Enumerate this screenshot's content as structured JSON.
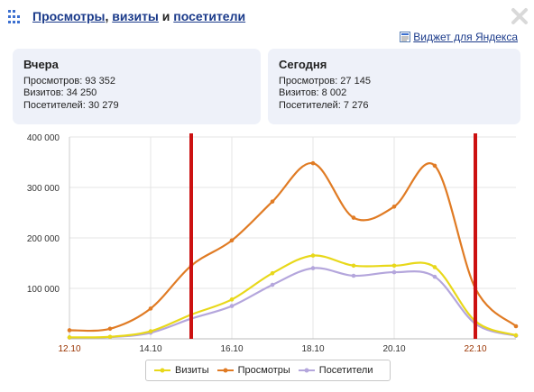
{
  "header": {
    "views_link": "Просмотры",
    "comma": ",",
    "visits_link": "визиты",
    "and_word": "и",
    "visitors_link": "посетители"
  },
  "yandex_widget_link": "Виджет для Яндекса",
  "yesterday": {
    "title": "Вчера",
    "views": "Просмотров: 93 352",
    "visits": "Визитов: 34 250",
    "visitors": "Посетителей: 30 279"
  },
  "today": {
    "title": "Сегодня",
    "views": "Просмотров: 27 145",
    "visits": "Визитов: 8 002",
    "visitors": "Посетителей: 7 276"
  },
  "colors": {
    "views": "#e07b24",
    "visits": "#e8d81a",
    "visitors": "#b4a6dc",
    "marker": "#cc1111",
    "weekend_label": "#993300"
  },
  "chart_data": {
    "type": "line",
    "x": [
      "12.10",
      "13.10",
      "14.10",
      "15.10",
      "16.10",
      "17.10",
      "18.10",
      "19.10",
      "20.10",
      "21.10",
      "22.10",
      "23.10"
    ],
    "x_tick_labels": [
      "12.10",
      "14.10",
      "16.10",
      "18.10",
      "20.10",
      "22.10"
    ],
    "y_tick_labels": [
      "400 000",
      "300 000",
      "200 000",
      "100 000"
    ],
    "ylim": [
      0,
      400000
    ],
    "grid": true,
    "legend_position": "bottom-center",
    "vertical_markers": [
      "15.10",
      "22.10"
    ],
    "series": [
      {
        "name": "Визиты",
        "values": [
          3000,
          4000,
          15000,
          48000,
          78000,
          130000,
          165000,
          145000,
          145000,
          142000,
          35000,
          7000
        ]
      },
      {
        "name": "Просмотры",
        "values": [
          17000,
          20000,
          60000,
          145000,
          195000,
          272000,
          348000,
          240000,
          262000,
          343000,
          100000,
          25000
        ]
      },
      {
        "name": "Посетители",
        "values": [
          2500,
          3500,
          12000,
          40000,
          65000,
          107000,
          140000,
          125000,
          132000,
          123000,
          30000,
          6000
        ]
      }
    ]
  }
}
